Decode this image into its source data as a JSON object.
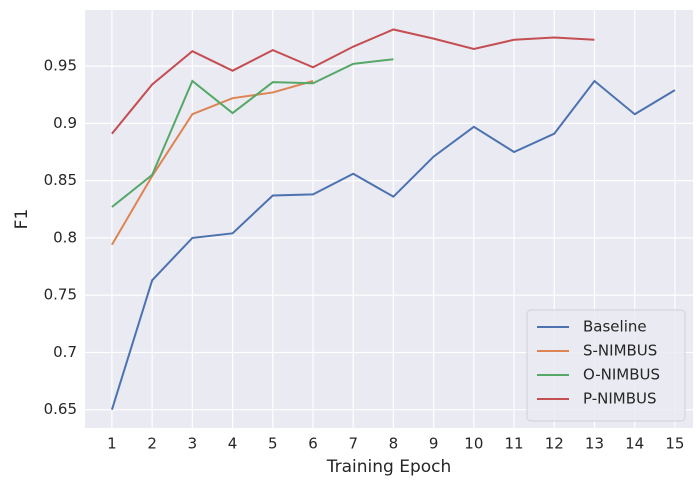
{
  "chart_data": {
    "type": "line",
    "x": [
      1,
      2,
      3,
      4,
      5,
      6,
      7,
      8,
      9,
      10,
      11,
      12,
      13,
      14,
      15
    ],
    "x_label": "Training Epoch",
    "y_label": "F1",
    "xlim": [
      0.33,
      15.45
    ],
    "ylim": [
      0.634,
      0.999
    ],
    "xticks": [
      1,
      2,
      3,
      4,
      5,
      6,
      7,
      8,
      9,
      10,
      11,
      12,
      13,
      14,
      15
    ],
    "yticks": [
      0.65,
      0.7,
      0.75,
      0.8,
      0.85,
      0.9,
      0.95
    ],
    "grid": true,
    "legend": "lower right",
    "series": [
      {
        "name": "Baseline",
        "color": "#4c72b0",
        "values": [
          0.65,
          0.763,
          0.8,
          0.804,
          0.837,
          0.838,
          0.856,
          0.836,
          0.871,
          0.897,
          0.875,
          0.891,
          0.937,
          0.908,
          0.929
        ]
      },
      {
        "name": "S-NIMBUS",
        "color": "#dd8452",
        "values": [
          0.794,
          0.854,
          0.908,
          0.922,
          0.927,
          0.937,
          null,
          null,
          null,
          null,
          null,
          null,
          null,
          null,
          null
        ]
      },
      {
        "name": "O-NIMBUS",
        "color": "#55a868",
        "values": [
          0.827,
          0.855,
          0.937,
          0.909,
          0.936,
          0.935,
          0.952,
          0.956,
          null,
          null,
          null,
          null,
          null,
          null,
          null
        ]
      },
      {
        "name": "P-NIMBUS",
        "color": "#c44e52",
        "values": [
          0.891,
          0.934,
          0.963,
          0.946,
          0.964,
          0.949,
          0.967,
          0.982,
          0.974,
          0.965,
          0.973,
          0.975,
          0.973,
          null,
          null
        ]
      }
    ]
  }
}
